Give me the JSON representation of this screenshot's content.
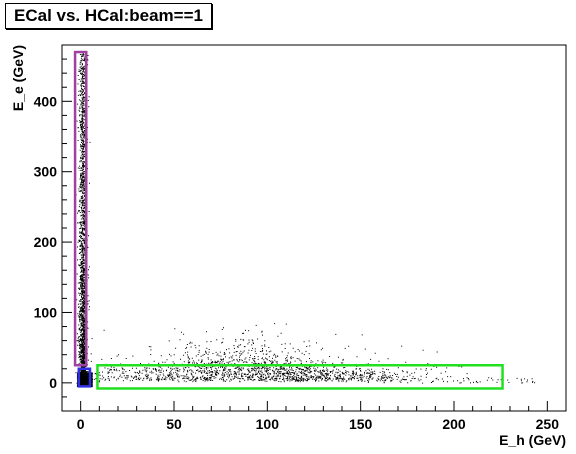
{
  "chart_data": {
    "type": "scatter",
    "title": "ECal vs. HCal:beam==1",
    "xlabel": "E_h (GeV)",
    "ylabel": "E_e (GeV)",
    "xlim": [
      -10,
      260
    ],
    "ylim": [
      -40,
      480
    ],
    "x_ticks": [
      0,
      50,
      100,
      150,
      200,
      250
    ],
    "y_ticks": [
      0,
      100,
      200,
      300,
      400
    ],
    "grid": false,
    "legend": "none",
    "point_color": "#000000",
    "regions": [
      {
        "color": "#a040a0",
        "x": [
          -3,
          3
        ],
        "y": [
          25,
          470
        ]
      },
      {
        "color": "#3030e0",
        "x": [
          -1,
          5
        ],
        "y": [
          -5,
          20
        ]
      },
      {
        "color": "#20e020",
        "x": [
          9,
          226
        ],
        "y": [
          -8,
          25
        ]
      }
    ],
    "distributions": {
      "vertical_band": {
        "x_center": 1,
        "x_spread": 1.5,
        "y_range": [
          0,
          470
        ]
      },
      "core_cluster": {
        "x_range": [
          -2,
          6
        ],
        "y_range": [
          -5,
          15
        ]
      },
      "horizontal_band": {
        "x_range": [
          5,
          240
        ],
        "peak_x": 95,
        "y_center": 5,
        "y_spread": 10,
        "max_y": 85
      }
    }
  }
}
